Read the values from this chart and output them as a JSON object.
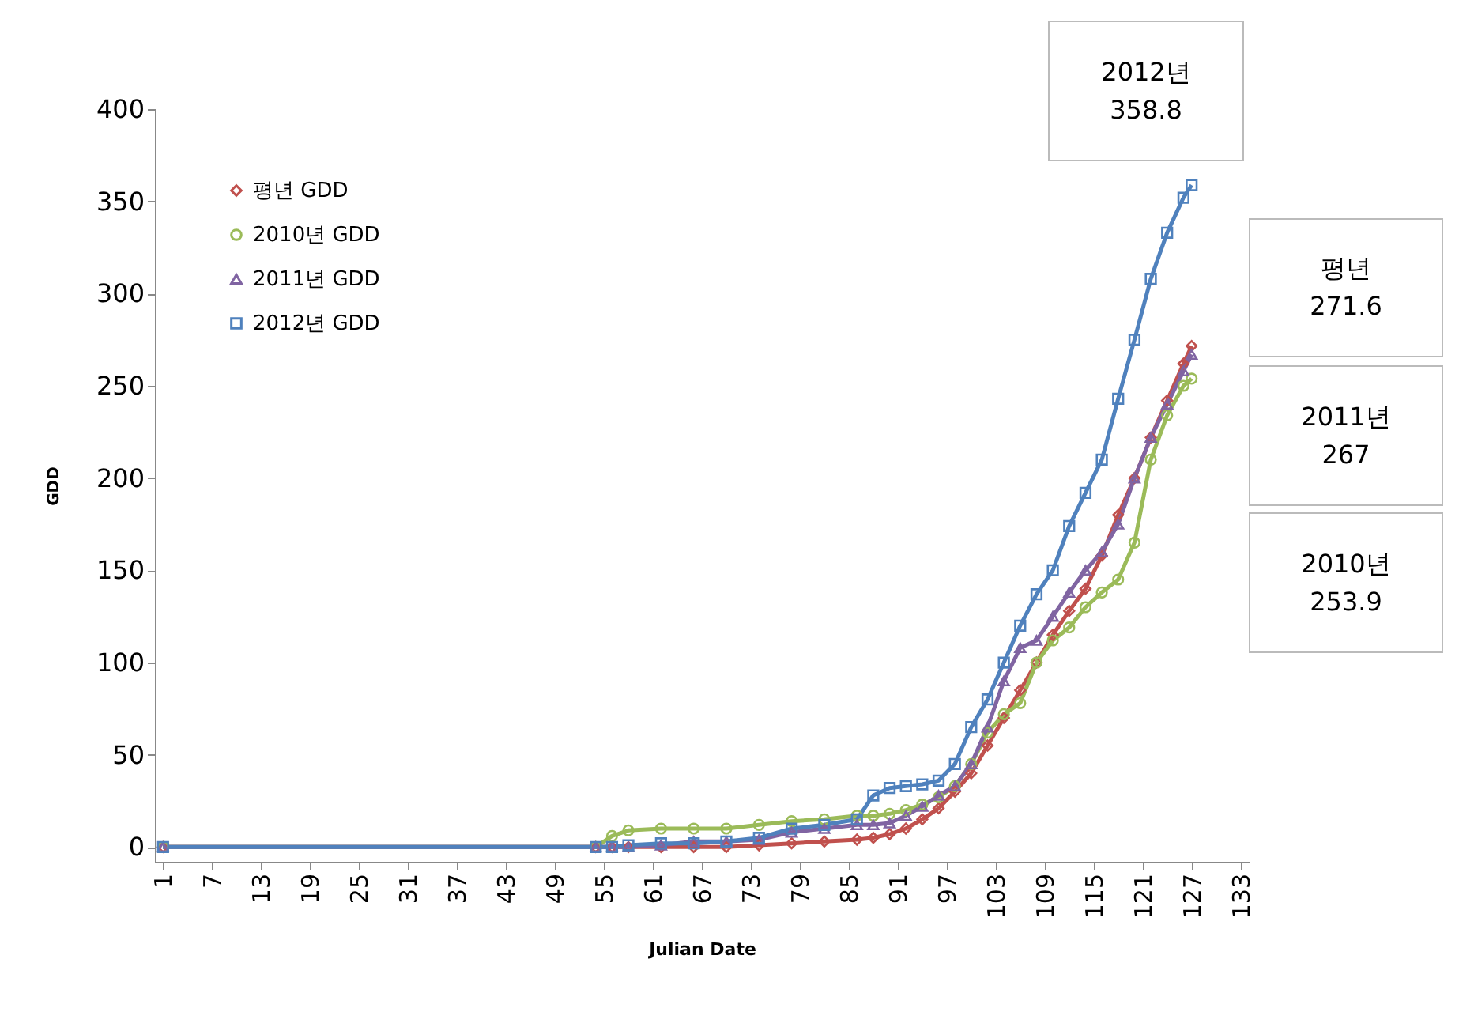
{
  "chart_data": {
    "type": "line",
    "xlabel": "Julian Date",
    "ylabel": "GDD",
    "x": [
      1,
      54,
      56,
      58,
      62,
      66,
      70,
      74,
      78,
      82,
      86,
      88,
      90,
      92,
      94,
      96,
      98,
      100,
      102,
      104,
      106,
      108,
      110,
      112,
      114,
      116,
      118,
      120,
      122,
      124,
      126,
      127
    ],
    "xlim": [
      0,
      134
    ],
    "xticks": [
      1,
      7,
      13,
      19,
      25,
      31,
      37,
      43,
      49,
      55,
      61,
      67,
      73,
      79,
      85,
      91,
      97,
      103,
      109,
      115,
      121,
      127,
      133
    ],
    "ylim": [
      -8,
      400
    ],
    "yticks": [
      0,
      50,
      100,
      150,
      200,
      250,
      300,
      350,
      400
    ],
    "grid": false,
    "legend": "top left",
    "line_style": "solid",
    "series": [
      {
        "name": "평년 GDD",
        "color": "#c0504d",
        "marker": "diamond",
        "values": [
          0,
          0,
          0,
          0,
          0,
          0,
          0,
          1,
          2,
          3,
          4,
          5,
          7,
          10,
          15,
          21,
          30,
          40,
          55,
          70,
          85,
          100,
          115,
          128,
          140,
          158,
          180,
          200,
          222,
          242,
          262,
          271.6
        ]
      },
      {
        "name": "2010년 GDD",
        "color": "#9bbb59",
        "marker": "circle",
        "values": [
          0,
          0,
          6,
          9,
          10,
          10,
          10,
          12,
          14,
          15,
          17,
          17,
          18,
          20,
          23,
          27,
          33,
          45,
          62,
          72,
          78,
          100,
          112,
          119,
          130,
          138,
          145,
          165,
          210,
          234,
          250,
          253.9
        ]
      },
      {
        "name": "2011년 GDD",
        "color": "#8064a2",
        "marker": "triangle",
        "values": [
          0,
          0,
          0,
          0,
          1,
          3,
          3,
          4,
          8,
          10,
          12,
          12,
          13,
          17,
          22,
          28,
          33,
          45,
          65,
          90,
          108,
          112,
          125,
          138,
          150,
          160,
          175,
          200,
          222,
          240,
          258,
          267
        ]
      },
      {
        "name": "2012년 GDD",
        "color": "#4f81bd",
        "marker": "square",
        "values": [
          0,
          0,
          0,
          1,
          2,
          2,
          3,
          5,
          10,
          12,
          15,
          28,
          32,
          33,
          34,
          36,
          45,
          65,
          80,
          100,
          120,
          137,
          150,
          174,
          192,
          210,
          243,
          275,
          308,
          333,
          352,
          358.8
        ]
      }
    ],
    "annotations": [
      "2012년\n358.8",
      "평년\n271.6",
      "2011년\n267",
      "2010년\n253.9"
    ]
  }
}
